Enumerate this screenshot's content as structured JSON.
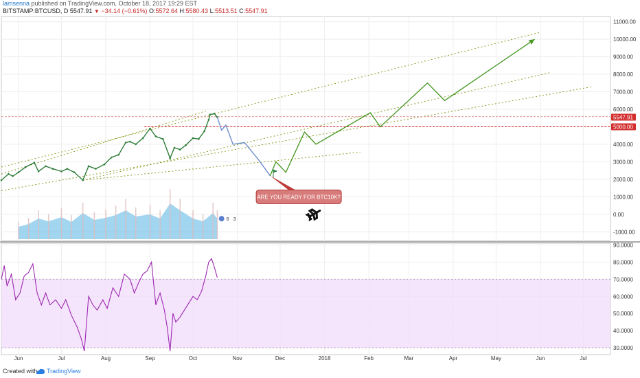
{
  "header": {
    "author": "lamsenna",
    "published": "published on TradingView.com, October 18, 2017 19:29 EST",
    "symbol": "BITSTAMP:BTCUSD, D",
    "last": "5547.91",
    "change": "−34.14 (−0.61%)",
    "o_label": "O:",
    "o_value": "5572.64",
    "h_label": "H:",
    "h_value": "5580.43",
    "l_label": "L:",
    "l_value": "5513.51",
    "c_label": "C:",
    "c_value": "5547.91"
  },
  "footer": {
    "created": "Created with",
    "brand": "TradingView"
  },
  "colors": {
    "rsi_line": "#9c27b0",
    "rsi_band": "#f1dcfb",
    "volume": "#79c3ea",
    "projection_green": "#4c9a2a",
    "projection_blue": "#6f8fcf",
    "level_red": "#d32f2f",
    "trend_olive": "#8a9a20"
  },
  "chart_data": [
    {
      "type": "line",
      "name": "price",
      "ylim": [
        -1500,
        11300
      ],
      "ylabels": [
        "11000.00",
        "10000.00",
        "9000.00",
        "8000.00",
        "7000.00",
        "6000.00",
        "5000.00",
        "4000.00",
        "3000.00",
        "2000.00",
        "1000.00",
        "0.00",
        "-1000.00"
      ],
      "ytick_values": [
        11000,
        10000,
        9000,
        8000,
        7000,
        6000,
        5000,
        4000,
        3000,
        2000,
        1000,
        0,
        -1000
      ],
      "xlabels": [
        "Jun",
        "Jul",
        "Aug",
        "Sep",
        "Oct",
        "Nov",
        "Dec",
        "2018",
        "Feb",
        "Mar",
        "Apr",
        "May",
        "Jun",
        "Jul"
      ],
      "xlabel_dates": [
        "2017-06-01",
        "2017-07-01",
        "2017-08-01",
        "2017-09-01",
        "2017-10-01",
        "2017-11-01",
        "2017-12-01",
        "2018-01-01",
        "2018-02-01",
        "2018-03-01",
        "2018-04-01",
        "2018-05-01",
        "2018-06-01",
        "2018-07-01"
      ],
      "price_badges": [
        {
          "label": "5547.91",
          "value": 5547.91
        },
        {
          "label": "5000.00",
          "value": 5000
        }
      ],
      "price_series": [
        [
          "2017-05-20",
          1950
        ],
        [
          "2017-05-25",
          2300
        ],
        [
          "2017-05-28",
          2180
        ],
        [
          "2017-06-01",
          2400
        ],
        [
          "2017-06-06",
          2700
        ],
        [
          "2017-06-12",
          2950
        ],
        [
          "2017-06-15",
          2450
        ],
        [
          "2017-06-20",
          2750
        ],
        [
          "2017-06-25",
          2600
        ],
        [
          "2017-07-01",
          2450
        ],
        [
          "2017-07-05",
          2600
        ],
        [
          "2017-07-10",
          2400
        ],
        [
          "2017-07-16",
          1950
        ],
        [
          "2017-07-20",
          2750
        ],
        [
          "2017-07-25",
          2600
        ],
        [
          "2017-07-31",
          2850
        ],
        [
          "2017-08-05",
          3250
        ],
        [
          "2017-08-10",
          3400
        ],
        [
          "2017-08-15",
          4100
        ],
        [
          "2017-08-18",
          4150
        ],
        [
          "2017-08-22",
          4000
        ],
        [
          "2017-08-27",
          4350
        ],
        [
          "2017-09-01",
          4900
        ],
        [
          "2017-09-05",
          4450
        ],
        [
          "2017-09-10",
          4300
        ],
        [
          "2017-09-15",
          3200
        ],
        [
          "2017-09-18",
          3800
        ],
        [
          "2017-09-22",
          3700
        ],
        [
          "2017-09-26",
          3950
        ],
        [
          "2017-10-01",
          4350
        ],
        [
          "2017-10-05",
          4300
        ],
        [
          "2017-10-09",
          4750
        ],
        [
          "2017-10-12",
          5400
        ],
        [
          "2017-10-13",
          5700
        ],
        [
          "2017-10-16",
          5750
        ],
        [
          "2017-10-18",
          5547.91
        ]
      ],
      "volume_series": [
        [
          "2017-06-01",
          180
        ],
        [
          "2017-06-08",
          220
        ],
        [
          "2017-06-15",
          300
        ],
        [
          "2017-06-22",
          260
        ],
        [
          "2017-07-01",
          320
        ],
        [
          "2017-07-08",
          250
        ],
        [
          "2017-07-16",
          380
        ],
        [
          "2017-07-24",
          280
        ],
        [
          "2017-08-01",
          310
        ],
        [
          "2017-08-08",
          350
        ],
        [
          "2017-08-15",
          420
        ],
        [
          "2017-08-22",
          330
        ],
        [
          "2017-09-01",
          360
        ],
        [
          "2017-09-08",
          300
        ],
        [
          "2017-09-15",
          520
        ],
        [
          "2017-09-22",
          420
        ],
        [
          "2017-10-01",
          300
        ],
        [
          "2017-10-08",
          260
        ],
        [
          "2017-10-15",
          380
        ],
        [
          "2017-10-18",
          300
        ]
      ],
      "projection_blue": [
        [
          "2017-10-18",
          5547.91
        ],
        [
          "2017-10-21",
          4800
        ],
        [
          "2017-10-24",
          5100
        ],
        [
          "2017-10-29",
          4000
        ],
        [
          "2017-11-06",
          4100
        ],
        [
          "2017-11-16",
          3100
        ],
        [
          "2017-11-24",
          2200
        ]
      ],
      "projection_green": [
        [
          "2017-11-24",
          2200
        ],
        [
          "2017-11-28",
          3000
        ],
        [
          "2017-12-05",
          2400
        ],
        [
          "2017-12-18",
          4700
        ],
        [
          "2017-12-26",
          4000
        ],
        [
          "2018-02-02",
          5800
        ],
        [
          "2018-02-09",
          5000
        ],
        [
          "2018-03-14",
          7500
        ],
        [
          "2018-03-26",
          6500
        ],
        [
          "2018-05-28",
          10000
        ]
      ],
      "level_lines": [
        {
          "value": 5000,
          "from": "2017-08-28",
          "color": "#d32f2f"
        },
        {
          "value": 5580,
          "from": "2017-05-20",
          "color": "#e2a0a0"
        }
      ],
      "trend_lines": [
        [
          [
            "2017-05-20",
            1350
          ],
          [
            "2018-07-08",
            7300
          ]
        ],
        [
          [
            "2017-05-20",
            2700
          ],
          [
            "2018-06-01",
            10400
          ]
        ],
        [
          [
            "2017-07-16",
            1950
          ],
          [
            "2018-06-08",
            8100
          ]
        ],
        [
          [
            "2017-07-16",
            1950
          ],
          [
            "2018-01-26",
            3550
          ]
        ],
        [
          [
            "2017-05-20",
            2300
          ],
          [
            "2017-10-10",
            5900
          ]
        ]
      ],
      "annotation": "ARE YOU READY FOR BTC10K?",
      "marker_labels": [
        "6",
        "3"
      ]
    },
    {
      "type": "line",
      "name": "RSI",
      "ylim": [
        26,
        91
      ],
      "ylabels": [
        "90.0000",
        "80.0000",
        "70.0000",
        "60.0000",
        "50.0000",
        "40.0000",
        "30.0000"
      ],
      "ytick_values": [
        90,
        80,
        70,
        60,
        50,
        40,
        30
      ],
      "band": [
        30,
        70
      ],
      "series": [
        [
          "2017-05-20",
          70
        ],
        [
          "2017-05-22",
          78
        ],
        [
          "2017-05-24",
          66
        ],
        [
          "2017-05-27",
          73
        ],
        [
          "2017-05-30",
          58
        ],
        [
          "2017-06-02",
          62
        ],
        [
          "2017-06-05",
          72
        ],
        [
          "2017-06-08",
          74
        ],
        [
          "2017-06-11",
          79
        ],
        [
          "2017-06-14",
          62
        ],
        [
          "2017-06-17",
          55
        ],
        [
          "2017-06-20",
          62
        ],
        [
          "2017-06-23",
          55
        ],
        [
          "2017-06-27",
          58
        ],
        [
          "2017-07-01",
          53
        ],
        [
          "2017-07-04",
          58
        ],
        [
          "2017-07-08",
          49
        ],
        [
          "2017-07-12",
          42
        ],
        [
          "2017-07-15",
          35
        ],
        [
          "2017-07-17",
          28
        ],
        [
          "2017-07-20",
          60
        ],
        [
          "2017-07-23",
          55
        ],
        [
          "2017-07-26",
          52
        ],
        [
          "2017-07-30",
          58
        ],
        [
          "2017-08-02",
          53
        ],
        [
          "2017-08-06",
          65
        ],
        [
          "2017-08-10",
          60
        ],
        [
          "2017-08-14",
          73
        ],
        [
          "2017-08-18",
          70
        ],
        [
          "2017-08-21",
          62
        ],
        [
          "2017-08-24",
          68
        ],
        [
          "2017-08-27",
          73
        ],
        [
          "2017-08-30",
          75
        ],
        [
          "2017-09-02",
          80
        ],
        [
          "2017-09-05",
          55
        ],
        [
          "2017-09-08",
          62
        ],
        [
          "2017-09-11",
          52
        ],
        [
          "2017-09-13",
          42
        ],
        [
          "2017-09-15",
          28
        ],
        [
          "2017-09-17",
          50
        ],
        [
          "2017-09-19",
          45
        ],
        [
          "2017-09-22",
          48
        ],
        [
          "2017-09-25",
          52
        ],
        [
          "2017-09-28",
          56
        ],
        [
          "2017-10-01",
          60
        ],
        [
          "2017-10-04",
          58
        ],
        [
          "2017-10-07",
          63
        ],
        [
          "2017-10-10",
          72
        ],
        [
          "2017-10-12",
          80
        ],
        [
          "2017-10-14",
          82
        ],
        [
          "2017-10-16",
          77
        ],
        [
          "2017-10-18",
          71
        ]
      ]
    }
  ]
}
